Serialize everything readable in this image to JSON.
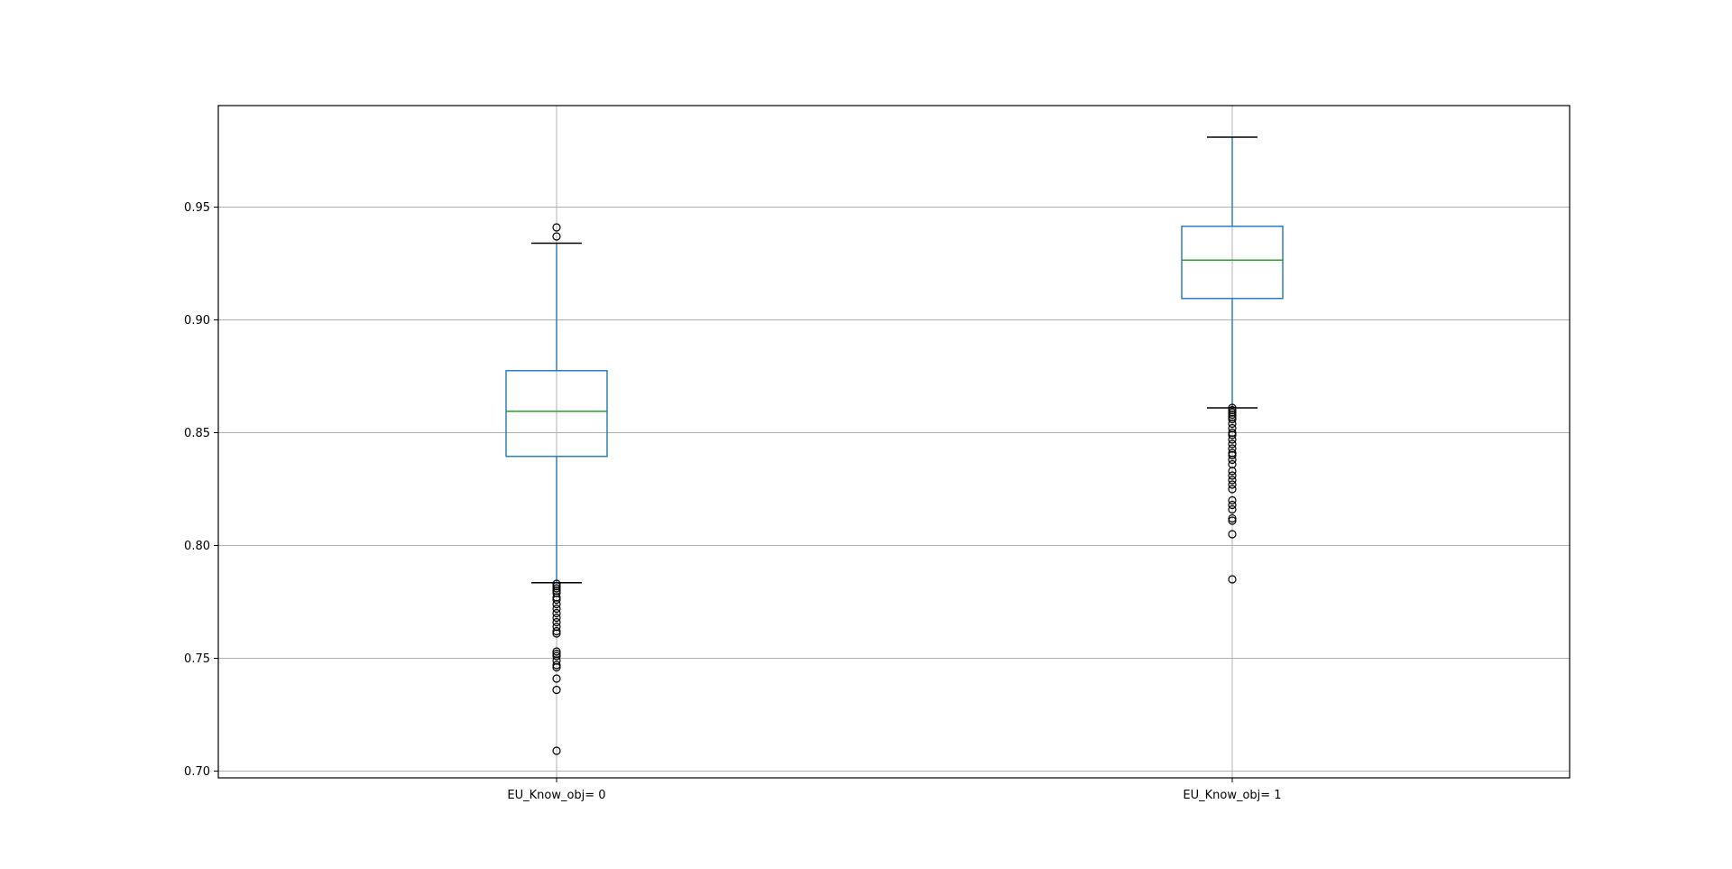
{
  "chart_data": {
    "type": "box",
    "title": "",
    "xlabel": "",
    "ylabel": "",
    "ylim": [
      0.697,
      0.995
    ],
    "yticks": [
      0.7,
      0.75,
      0.8,
      0.85,
      0.9,
      0.95
    ],
    "ytick_labels": [
      "0.70",
      "0.75",
      "0.80",
      "0.85",
      "0.90",
      "0.95"
    ],
    "grid": true,
    "categories": [
      "EU_Know_obj= 0",
      "EU_Know_obj= 1"
    ],
    "boxes": [
      {
        "category": "EU_Know_obj= 0",
        "whisker_low": 0.7835,
        "q1": 0.8395,
        "median": 0.8595,
        "q3": 0.8775,
        "whisker_high": 0.934,
        "outliers": [
          0.709,
          0.736,
          0.741,
          0.746,
          0.747,
          0.749,
          0.751,
          0.752,
          0.753,
          0.761,
          0.762,
          0.764,
          0.766,
          0.768,
          0.77,
          0.772,
          0.774,
          0.776,
          0.777,
          0.779,
          0.78,
          0.781,
          0.782,
          0.783,
          0.937,
          0.941
        ]
      },
      {
        "category": "EU_Know_obj= 1",
        "whisker_low": 0.861,
        "q1": 0.9095,
        "median": 0.9265,
        "q3": 0.9415,
        "whisker_high": 0.981,
        "outliers": [
          0.785,
          0.805,
          0.811,
          0.812,
          0.816,
          0.818,
          0.82,
          0.825,
          0.827,
          0.829,
          0.831,
          0.833,
          0.836,
          0.838,
          0.84,
          0.841,
          0.843,
          0.845,
          0.847,
          0.849,
          0.85,
          0.852,
          0.854,
          0.856,
          0.857,
          0.858,
          0.859,
          0.86,
          0.861
        ]
      }
    ],
    "colors": {
      "box": "#1f77b4",
      "median": "#2ca02c",
      "cap": "#000000",
      "flier": "#000000",
      "grid": "#b0b0b0"
    }
  }
}
